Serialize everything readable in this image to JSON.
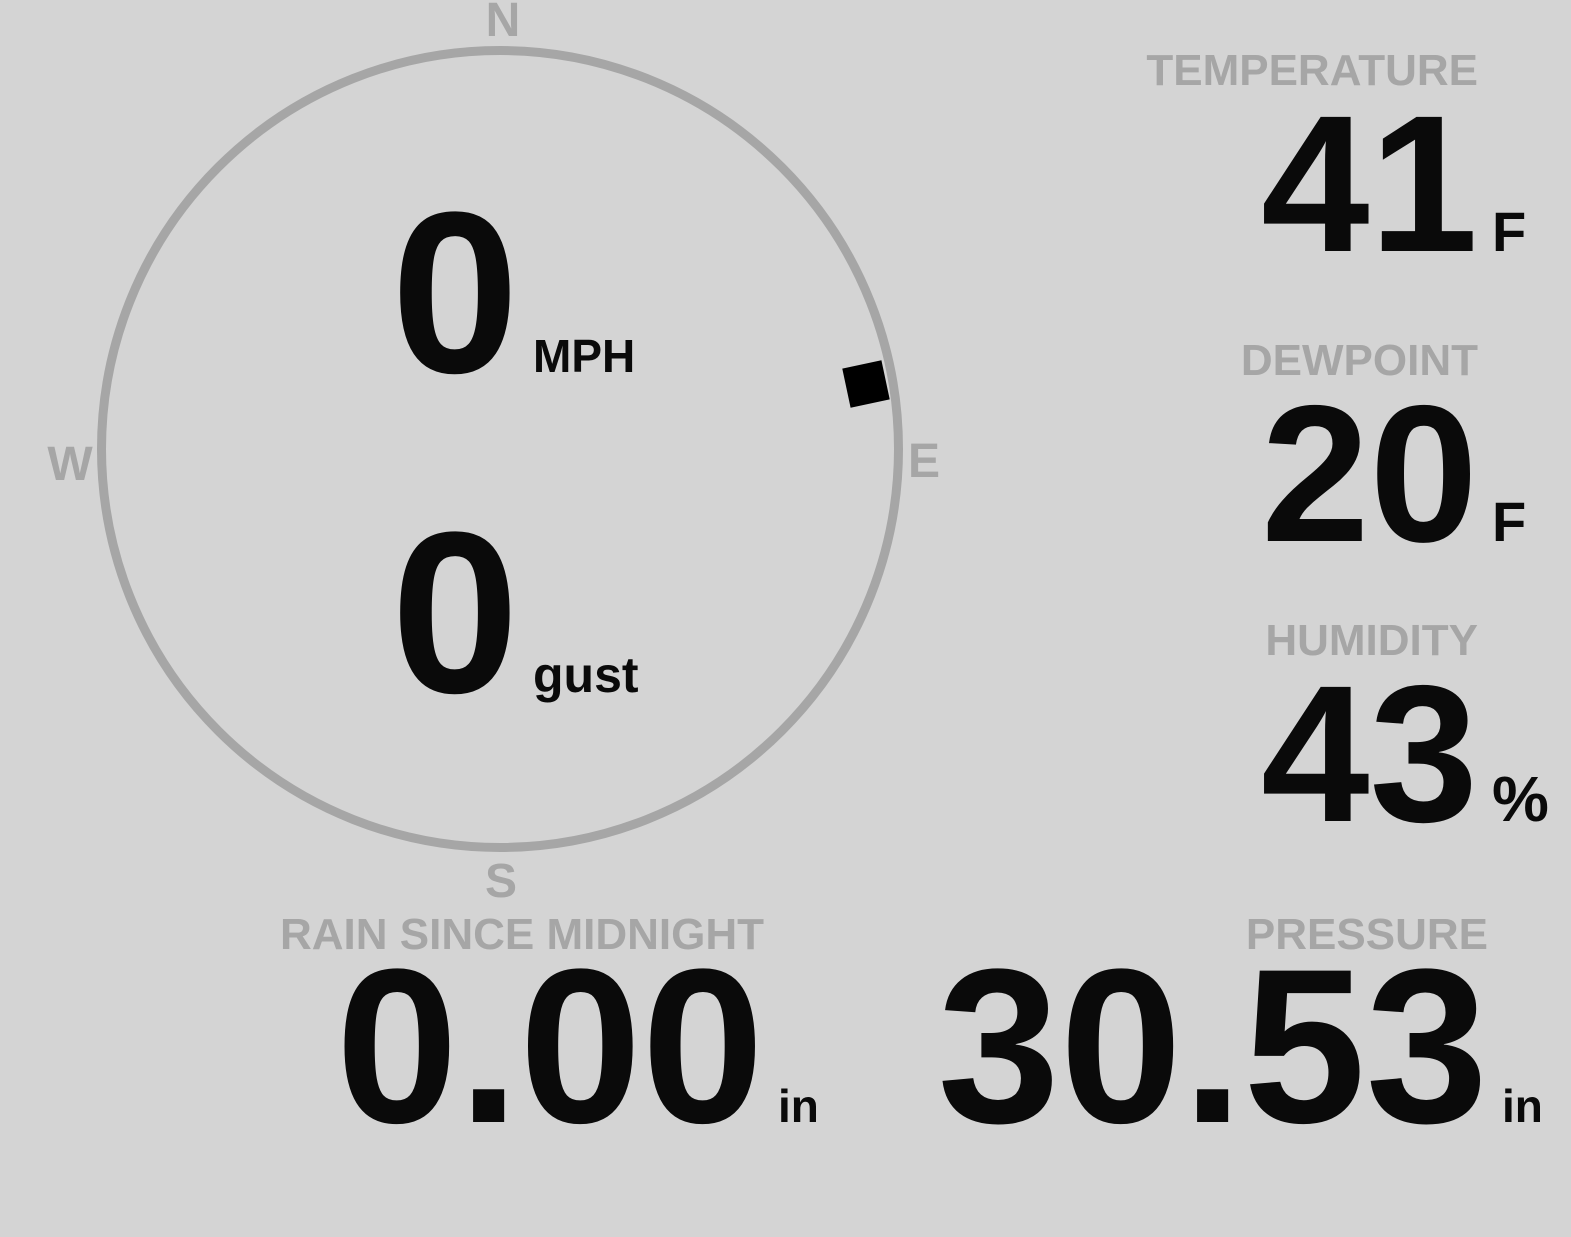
{
  "colors": {
    "background": "#d4d4d4",
    "muted_gray": "#a6a6a6",
    "value_black": "#0a0a0a"
  },
  "compass": {
    "cardinals": {
      "north": "N",
      "east": "E",
      "south": "S",
      "west": "W"
    },
    "marker_bearing_deg": 80,
    "wind": {
      "speed": "0",
      "speed_unit": "MPH",
      "gust": "0",
      "gust_label": "gust"
    }
  },
  "metrics": {
    "temperature": {
      "label": "TEMPERATURE",
      "value": "41",
      "unit": "F"
    },
    "dewpoint": {
      "label": "DEWPOINT",
      "value": "20",
      "unit": "F"
    },
    "humidity": {
      "label": "HUMIDITY",
      "value": "43",
      "unit": "%"
    },
    "rain": {
      "label": "RAIN SINCE MIDNIGHT",
      "value": "0.00",
      "unit": "in"
    },
    "pressure": {
      "label": "PRESSURE",
      "value": "30.53",
      "unit": "in"
    }
  }
}
